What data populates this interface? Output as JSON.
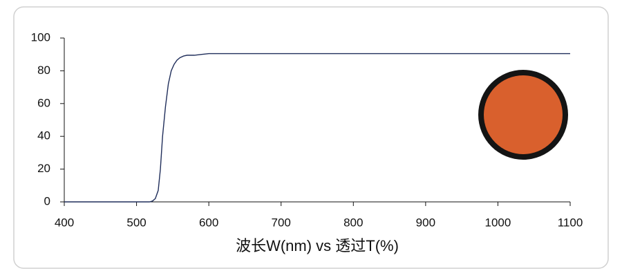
{
  "chart_data": {
    "type": "line",
    "xlabel": "波长W(nm) vs 透过T(%)",
    "x": [
      400,
      518,
      522,
      526,
      530,
      533,
      536,
      540,
      544,
      548,
      552,
      556,
      560,
      565,
      570,
      580,
      590,
      600,
      700,
      800,
      900,
      1000,
      1100
    ],
    "series": [
      {
        "color": "#1f2d5a",
        "values": [
          0,
          0,
          0.5,
          2,
          7,
          20,
          40,
          58,
          72,
          80,
          84,
          86.5,
          88,
          89,
          89.5,
          89.5,
          90,
          90.5,
          90.5,
          90.5,
          90.5,
          90.5,
          90.5
        ]
      }
    ],
    "xlim": [
      400,
      1100
    ],
    "xticks": [
      400,
      500,
      600,
      700,
      800,
      900,
      1000,
      1100
    ],
    "ylim": [
      0,
      100
    ],
    "yticks": [
      0,
      20,
      40,
      60,
      80,
      100
    ],
    "grid": false
  }
}
